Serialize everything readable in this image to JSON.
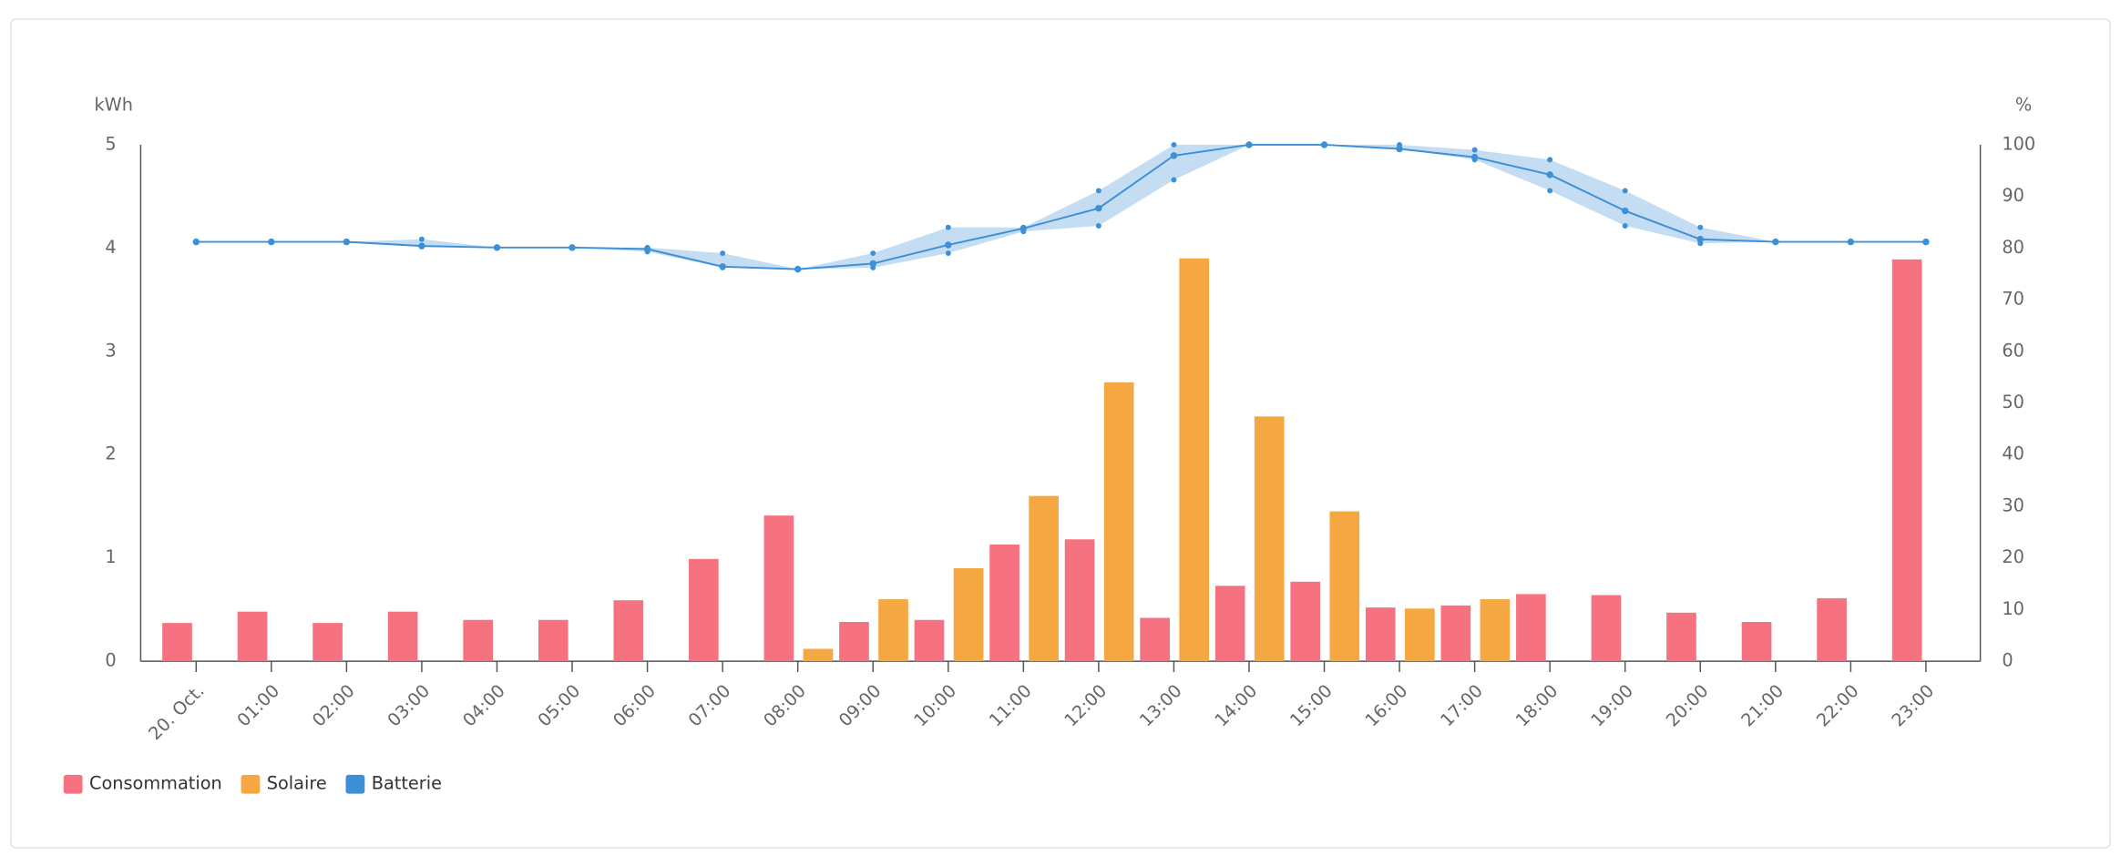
{
  "chart_data": {
    "type": "bar-line",
    "y_label": "kWh",
    "y2_label": "%",
    "categories": [
      "20. Oct.",
      "01:00",
      "02:00",
      "03:00",
      "04:00",
      "05:00",
      "06:00",
      "07:00",
      "08:00",
      "09:00",
      "10:00",
      "11:00",
      "12:00",
      "13:00",
      "14:00",
      "15:00",
      "16:00",
      "17:00",
      "18:00",
      "19:00",
      "20:00",
      "21:00",
      "22:00",
      "23:00"
    ],
    "series": [
      {
        "name": "Consommation",
        "color": "#f67280",
        "type": "bar",
        "values": [
          0.37,
          0.48,
          0.37,
          0.48,
          0.4,
          0.4,
          0.59,
          0.99,
          1.41,
          0.38,
          0.4,
          1.13,
          1.18,
          0.42,
          0.73,
          0.77,
          0.52,
          0.54,
          0.65,
          0.64,
          0.47,
          0.38,
          0.61,
          3.89
        ]
      },
      {
        "name": "Solaire",
        "color": "#f5a742",
        "type": "bar",
        "values": [
          null,
          null,
          null,
          null,
          null,
          null,
          null,
          null,
          0.12,
          0.6,
          0.9,
          1.6,
          2.7,
          3.9,
          2.37,
          1.45,
          0.51,
          0.6,
          null,
          null,
          null,
          null,
          null,
          null
        ]
      },
      {
        "name": "Batterie",
        "color": "#3d8fd6",
        "type": "line",
        "axis": "y2",
        "values": [
          81.2,
          81.2,
          81.2,
          80.4,
          80.1,
          80.1,
          79.8,
          76.4,
          75.9,
          77,
          80.6,
          83.8,
          87.7,
          97.9,
          100,
          100,
          99.2,
          97.6,
          94.2,
          87.2,
          81.7,
          81.2,
          81.2,
          81.2
        ],
        "min": [
          81.2,
          81.2,
          81.2,
          80.4,
          80.1,
          80.1,
          79.3,
          76.2,
          75.9,
          76.2,
          79,
          83.2,
          84.3,
          93.2,
          100,
          100,
          99.2,
          97.1,
          91.1,
          84.3,
          80.9,
          81.2,
          81.2,
          81.2
        ],
        "max": [
          81.2,
          81.2,
          81.2,
          81.7,
          80.1,
          80.1,
          80.1,
          79,
          75.9,
          79,
          84,
          84,
          91.1,
          100,
          100,
          100,
          100,
          99,
          97.1,
          91.1,
          84,
          81.2,
          81.2,
          81.2
        ]
      }
    ],
    "ylim": [
      0,
      5
    ],
    "yticks": [
      0,
      1,
      2,
      3,
      4,
      5
    ],
    "y2lim": [
      0,
      100
    ],
    "y2ticks": [
      0,
      10,
      20,
      30,
      40,
      50,
      60,
      70,
      80,
      90,
      100
    ],
    "legend": "bottom-left"
  }
}
